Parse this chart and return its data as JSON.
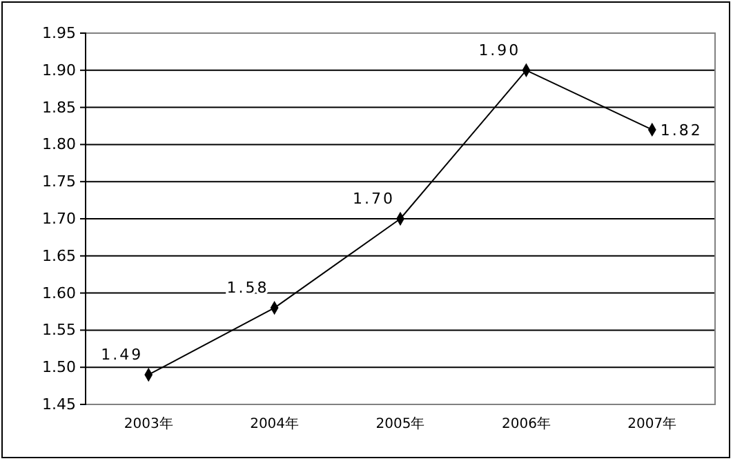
{
  "chart_data": {
    "type": "line",
    "categories": [
      "2003年",
      "2004年",
      "2005年",
      "2006年",
      "2007年"
    ],
    "series": [
      {
        "color": "#000000",
        "values": [
          1.49,
          1.58,
          1.7,
          1.9,
          1.82
        ],
        "value_labels": [
          "1.49",
          "1.58",
          "1.70",
          "1.90",
          "1.82"
        ]
      }
    ],
    "ylim": [
      1.45,
      1.95
    ],
    "yticks": [
      {
        "value": 1.45,
        "label": "1.45"
      },
      {
        "value": 1.5,
        "label": "1.50"
      },
      {
        "value": 1.55,
        "label": "1.55"
      },
      {
        "value": 1.6,
        "label": "1.60"
      },
      {
        "value": 1.65,
        "label": "1.65"
      },
      {
        "value": 1.7,
        "label": "1.70"
      },
      {
        "value": 1.75,
        "label": "1.75"
      },
      {
        "value": 1.8,
        "label": "1.80"
      },
      {
        "value": 1.85,
        "label": "1.85"
      },
      {
        "value": 1.9,
        "label": "1.90"
      },
      {
        "value": 1.95,
        "label": "1.95"
      }
    ],
    "grid": "y",
    "marker": "diamond",
    "line_style": "solid"
  }
}
